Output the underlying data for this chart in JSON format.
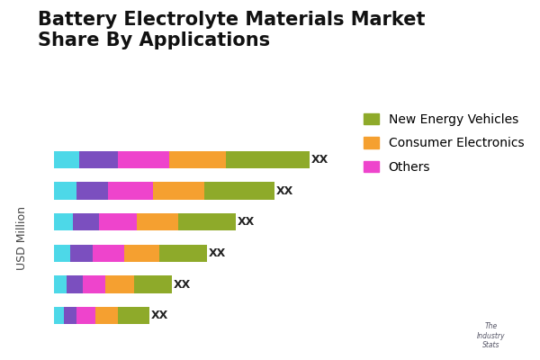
{
  "title": "Battery Electrolyte Materials Market\nShare By Applications",
  "ylabel": "USD Million",
  "bar_label": "XX",
  "colors": {
    "cyan": "#4DD8E8",
    "purple": "#7B4FBF",
    "magenta": "#EE44CC",
    "orange": "#F5A030",
    "olive": "#8EAA2A"
  },
  "segments": [
    [
      0.08,
      0.12,
      0.16,
      0.18,
      0.26
    ],
    [
      0.07,
      0.1,
      0.14,
      0.16,
      0.22
    ],
    [
      0.06,
      0.08,
      0.12,
      0.13,
      0.18
    ],
    [
      0.05,
      0.07,
      0.1,
      0.11,
      0.15
    ],
    [
      0.04,
      0.05,
      0.07,
      0.09,
      0.12
    ],
    [
      0.03,
      0.04,
      0.06,
      0.07,
      0.1
    ]
  ],
  "legend_labels": [
    "New Energy Vehicles",
    "Consumer Electronics",
    "Others"
  ],
  "legend_colors": [
    "#8EAA2A",
    "#F5A030",
    "#EE44CC"
  ],
  "background_color": "#FFFFFF",
  "title_fontsize": 15,
  "label_fontsize": 9,
  "legend_fontsize": 10
}
